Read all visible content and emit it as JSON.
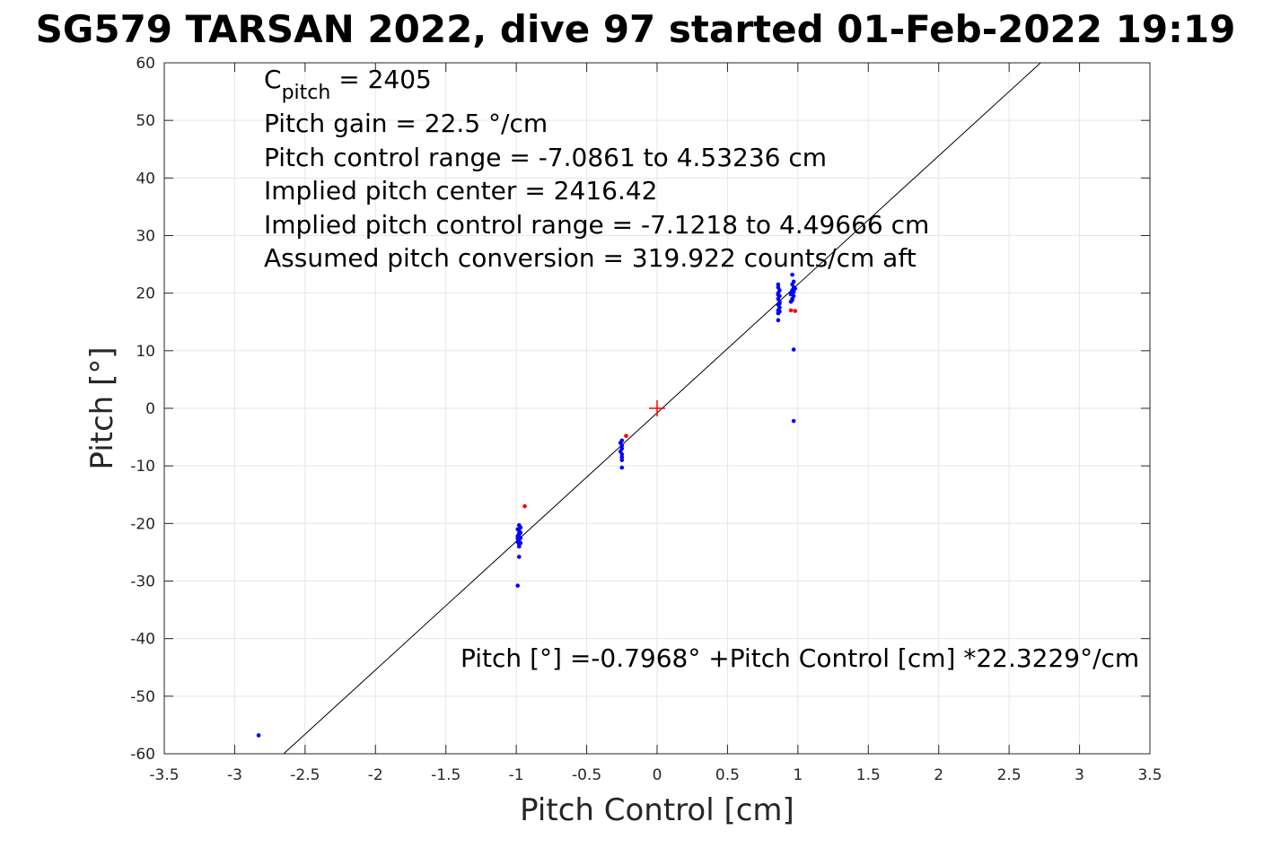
{
  "chart_data": {
    "type": "scatter",
    "title": "SG579 TARSAN 2022, dive 97 started 01-Feb-2022 19:19",
    "xlabel": "Pitch Control [cm]",
    "ylabel": "Pitch [°]",
    "xlim": [
      -3.5,
      3.5
    ],
    "ylim": [
      -60,
      60
    ],
    "xticks": [
      -3.5,
      -3,
      -2.5,
      -2,
      -1.5,
      -1,
      -0.5,
      0,
      0.5,
      1,
      1.5,
      2,
      2.5,
      3,
      3.5
    ],
    "yticks": [
      -60,
      -50,
      -40,
      -30,
      -20,
      -10,
      0,
      10,
      20,
      30,
      40,
      50,
      60
    ],
    "xtick_labels": [
      "-3.5",
      "-3",
      "-2.5",
      "-2",
      "-1.5",
      "-1",
      "-0.5",
      "0",
      "0.5",
      "1",
      "1.5",
      "2",
      "2.5",
      "3",
      "3.5"
    ],
    "ytick_labels": [
      "-60",
      "-50",
      "-40",
      "-30",
      "-20",
      "-10",
      "0",
      "10",
      "20",
      "30",
      "40",
      "50",
      "60"
    ],
    "grid": true,
    "annotations": {
      "cpitch_main": "C",
      "cpitch_sub": "pitch",
      "cpitch_value": " = 2405",
      "lines": [
        "Pitch gain = 22.5 °/cm",
        "Pitch control range = -7.0861 to 4.53236 cm",
        "Implied pitch center = 2416.42",
        "Implied pitch control range = -7.1218 to 4.49666 cm",
        "Assumed pitch conversion = 319.922 counts/cm aft"
      ],
      "fit_text": "Pitch [°] =-0.7968° +Pitch Control [cm] *22.3229°/cm"
    },
    "fit_line": {
      "intercept": -0.7968,
      "slope": 22.3229
    },
    "center_marker": {
      "x": 0,
      "y": 0
    },
    "series": [
      {
        "color": "#0000ff",
        "points": [
          [
            -2.83,
            -56.8
          ],
          [
            -0.99,
            -30.8
          ],
          [
            -0.98,
            -25.8
          ],
          [
            -0.98,
            -24.0
          ],
          [
            -0.98,
            -23.6
          ],
          [
            -0.99,
            -23.2
          ],
          [
            -0.98,
            -22.8
          ],
          [
            -0.97,
            -22.5
          ],
          [
            -0.99,
            -22.2
          ],
          [
            -0.98,
            -21.9
          ],
          [
            -0.97,
            -21.6
          ],
          [
            -0.98,
            -21.3
          ],
          [
            -0.99,
            -21.0
          ],
          [
            -0.97,
            -20.7
          ],
          [
            -0.98,
            -20.3
          ],
          [
            -0.99,
            -22.6
          ],
          [
            -0.97,
            -23.4
          ],
          [
            -0.98,
            -21.8
          ],
          [
            -0.25,
            -10.3
          ],
          [
            -0.25,
            -9.0
          ],
          [
            -0.25,
            -8.5
          ],
          [
            -0.25,
            -8.0
          ],
          [
            -0.26,
            -7.5
          ],
          [
            -0.25,
            -7.0
          ],
          [
            -0.25,
            -6.5
          ],
          [
            -0.26,
            -6.0
          ],
          [
            -0.25,
            -5.6
          ],
          [
            0.86,
            15.3
          ],
          [
            0.86,
            16.5
          ],
          [
            0.86,
            17.0
          ],
          [
            0.87,
            17.5
          ],
          [
            0.86,
            18.0
          ],
          [
            0.87,
            18.5
          ],
          [
            0.86,
            19.0
          ],
          [
            0.87,
            19.5
          ],
          [
            0.86,
            20.0
          ],
          [
            0.87,
            20.5
          ],
          [
            0.86,
            21.0
          ],
          [
            0.86,
            21.5
          ],
          [
            0.87,
            18.2
          ],
          [
            0.86,
            19.7
          ],
          [
            0.87,
            16.8
          ],
          [
            0.95,
            18.5
          ],
          [
            0.96,
            19.0
          ],
          [
            0.97,
            19.5
          ],
          [
            0.95,
            20.0
          ],
          [
            0.96,
            20.5
          ],
          [
            0.97,
            21.0
          ],
          [
            0.96,
            21.5
          ],
          [
            0.97,
            22.0
          ],
          [
            0.96,
            23.2
          ],
          [
            0.95,
            19.8
          ],
          [
            0.97,
            20.2
          ],
          [
            0.96,
            18.8
          ],
          [
            0.98,
            20.8
          ],
          [
            0.97,
            10.2
          ],
          [
            0.97,
            -2.2
          ]
        ]
      },
      {
        "color": "#ff0000",
        "points": [
          [
            -0.94,
            -17.0
          ],
          [
            -0.22,
            -4.8
          ],
          [
            0.95,
            17.0
          ],
          [
            0.98,
            16.9
          ]
        ]
      }
    ]
  }
}
